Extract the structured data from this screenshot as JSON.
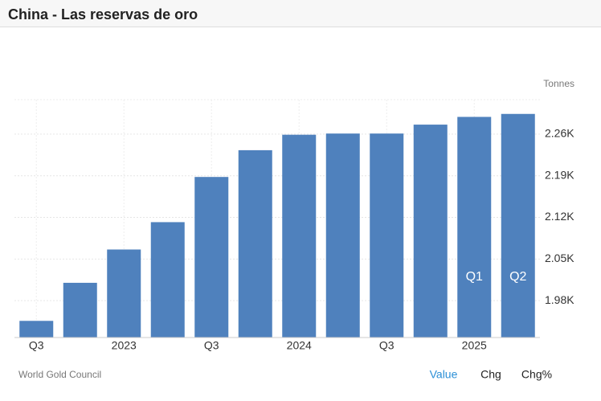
{
  "chart_data": {
    "type": "bar",
    "title": "China - Las reservas de oro",
    "unit": "Tonnes",
    "source": "World Gold Council",
    "categories": [
      "Q3",
      null,
      "2023",
      null,
      "Q3",
      null,
      "2024",
      null,
      "Q3",
      null,
      "2025",
      null
    ],
    "bar_labels": [
      null,
      null,
      null,
      null,
      null,
      null,
      null,
      null,
      null,
      null,
      "Q1",
      "Q2"
    ],
    "values": [
      1946,
      2010,
      2066,
      2112,
      2188,
      2233,
      2259,
      2261,
      2261,
      2276,
      2289,
      2294
    ],
    "color": "#4f81bd",
    "ylim": [
      1918,
      2318
    ],
    "yticks": [
      {
        "value": 1980,
        "label": "1.98K"
      },
      {
        "value": 2050,
        "label": "2.05K"
      },
      {
        "value": 2120,
        "label": "2.12K"
      },
      {
        "value": 2190,
        "label": "2.19K"
      },
      {
        "value": 2260,
        "label": "2.26K"
      }
    ],
    "grid": true,
    "tabs": [
      "Value",
      "Chg",
      "Chg%"
    ],
    "active_tab": 0
  }
}
